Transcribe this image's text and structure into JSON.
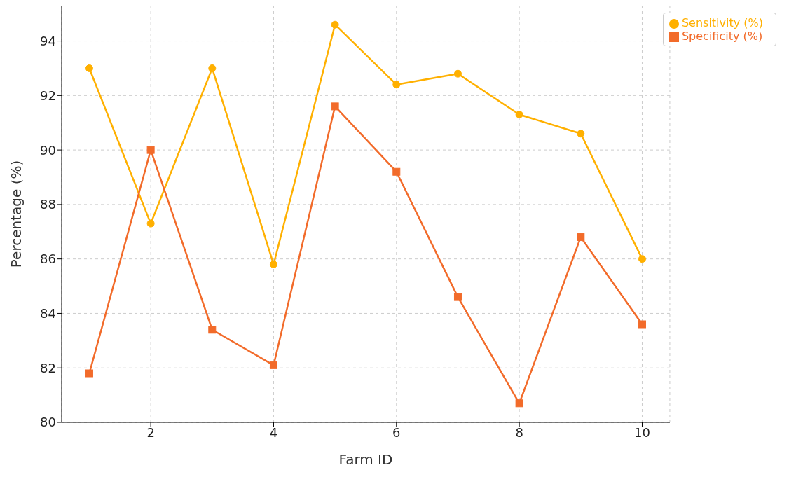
{
  "chart_data": {
    "type": "line",
    "xlabel": "Farm ID",
    "ylabel": "Percentage (%)",
    "x": [
      1,
      2,
      3,
      4,
      5,
      6,
      7,
      8,
      9,
      10
    ],
    "series": [
      {
        "name": "Sensitivity (%)",
        "color": "#ffb000",
        "marker": "circle",
        "values": [
          93.0,
          87.3,
          93.0,
          85.8,
          94.6,
          92.4,
          92.8,
          91.3,
          90.6,
          86.0
        ]
      },
      {
        "name": "Specificity (%)",
        "color": "#f26b2a",
        "marker": "square",
        "values": [
          81.8,
          90.0,
          83.4,
          82.1,
          91.6,
          89.2,
          84.6,
          80.7,
          86.8,
          83.6
        ]
      }
    ],
    "xlim": [
      0.55,
      10.45
    ],
    "xticks": [
      2,
      4,
      6,
      8,
      10
    ],
    "ylim": [
      80,
      95.3
    ],
    "yticks": [
      80,
      82,
      84,
      86,
      88,
      90,
      92,
      94
    ],
    "grid": true,
    "legend": "top right",
    "line_style": "solid"
  }
}
